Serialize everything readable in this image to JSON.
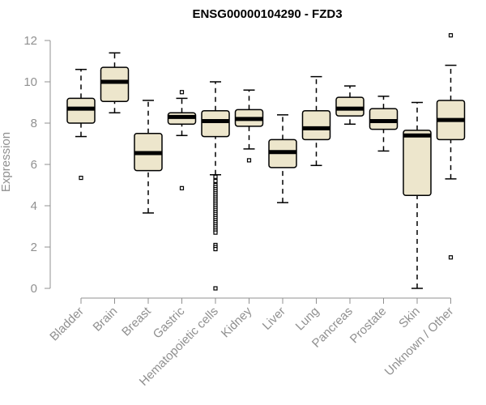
{
  "chart_data": {
    "type": "box",
    "title": "ENSG00000104290 - FZD3",
    "xlabel": "",
    "ylabel": "Expression",
    "ylim": [
      0,
      12.4
    ],
    "yticks": [
      "0",
      "2",
      "4",
      "6",
      "8",
      "10",
      "12"
    ],
    "box_fill": "#ede6cc",
    "categories": [
      "Bladder",
      "Brain",
      "Breast",
      "Gastric",
      "Hematopoietic cells",
      "Kidney",
      "Liver",
      "Lung",
      "Pancreas",
      "Prostate",
      "Skin",
      "Unknown / Other"
    ],
    "boxes": [
      {
        "whisker_low": 7.35,
        "q1": 8.0,
        "median": 8.7,
        "q3": 9.2,
        "whisker_high": 10.6,
        "outliers": [
          5.35
        ]
      },
      {
        "whisker_low": 8.5,
        "q1": 9.05,
        "median": 10.0,
        "q3": 10.7,
        "whisker_high": 11.4,
        "outliers": []
      },
      {
        "whisker_low": 3.65,
        "q1": 5.7,
        "median": 6.55,
        "q3": 7.5,
        "whisker_high": 9.1,
        "outliers": []
      },
      {
        "whisker_low": 7.4,
        "q1": 7.95,
        "median": 8.3,
        "q3": 8.5,
        "whisker_high": 9.2,
        "outliers": [
          9.5,
          4.85
        ]
      },
      {
        "whisker_low": 5.5,
        "q1": 7.35,
        "median": 8.1,
        "q3": 8.6,
        "whisker_high": 10.0,
        "outliers": [
          5.4,
          5.2,
          5.0,
          4.9,
          4.8,
          4.7,
          4.6,
          4.5,
          4.4,
          4.3,
          4.2,
          4.1,
          4.0,
          3.9,
          3.8,
          3.7,
          3.6,
          3.5,
          3.4,
          3.3,
          3.2,
          3.1,
          3.0,
          2.9,
          2.8,
          2.7,
          2.1,
          2.0,
          1.9,
          0.0
        ]
      },
      {
        "whisker_low": 6.75,
        "q1": 7.85,
        "median": 8.2,
        "q3": 8.65,
        "whisker_high": 9.6,
        "outliers": [
          6.2
        ]
      },
      {
        "whisker_low": 4.15,
        "q1": 5.85,
        "median": 6.6,
        "q3": 7.2,
        "whisker_high": 8.4,
        "outliers": []
      },
      {
        "whisker_low": 5.95,
        "q1": 7.2,
        "median": 7.75,
        "q3": 8.6,
        "whisker_high": 10.25,
        "outliers": []
      },
      {
        "whisker_low": 7.95,
        "q1": 8.35,
        "median": 8.7,
        "q3": 9.25,
        "whisker_high": 9.8,
        "outliers": []
      },
      {
        "whisker_low": 6.65,
        "q1": 7.7,
        "median": 8.1,
        "q3": 8.7,
        "whisker_high": 9.3,
        "outliers": []
      },
      {
        "whisker_low": 0.0,
        "q1": 4.5,
        "median": 7.4,
        "q3": 7.65,
        "whisker_high": 9.0,
        "outliers": []
      },
      {
        "whisker_low": 5.3,
        "q1": 7.2,
        "median": 8.15,
        "q3": 9.1,
        "whisker_high": 10.8,
        "outliers": [
          12.25,
          1.5
        ]
      }
    ]
  }
}
